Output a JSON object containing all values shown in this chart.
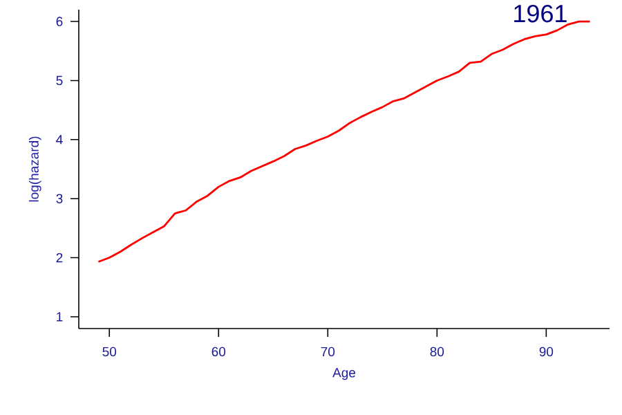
{
  "chart_data": {
    "type": "line",
    "xlabel": "Age",
    "ylabel": "log(hazard)",
    "annotations": [
      "1961"
    ],
    "x": [
      49,
      50,
      51,
      52,
      53,
      54,
      55,
      56,
      57,
      58,
      59,
      60,
      61,
      62,
      63,
      64,
      65,
      66,
      67,
      68,
      69,
      70,
      71,
      72,
      73,
      74,
      75,
      76,
      77,
      78,
      79,
      80,
      81,
      82,
      83,
      84,
      85,
      86,
      87,
      88,
      89,
      90,
      91,
      92,
      93,
      94
    ],
    "series": [
      {
        "color": "#ff0000",
        "values": [
          1.93,
          2.0,
          2.1,
          2.22,
          2.33,
          2.43,
          2.53,
          2.75,
          2.8,
          2.95,
          3.05,
          3.2,
          3.3,
          3.36,
          3.47,
          3.55,
          3.63,
          3.72,
          3.84,
          3.9,
          3.98,
          4.05,
          4.15,
          4.28,
          4.38,
          4.47,
          4.55,
          4.65,
          4.7,
          4.8,
          4.9,
          5.0,
          5.07,
          5.15,
          5.3,
          5.32,
          5.45,
          5.52,
          5.62,
          5.7,
          5.75,
          5.78,
          5.85,
          5.95,
          6.0,
          6.0
        ]
      }
    ],
    "xlim": [
      47.2,
      95.8
    ],
    "ylim": [
      0.8,
      6.2
    ],
    "xticks": [
      50,
      60,
      70,
      80,
      90
    ],
    "yticks": [
      1,
      2,
      3,
      4,
      5,
      6
    ],
    "grid": false,
    "marker": "none",
    "line_style": "solid"
  }
}
